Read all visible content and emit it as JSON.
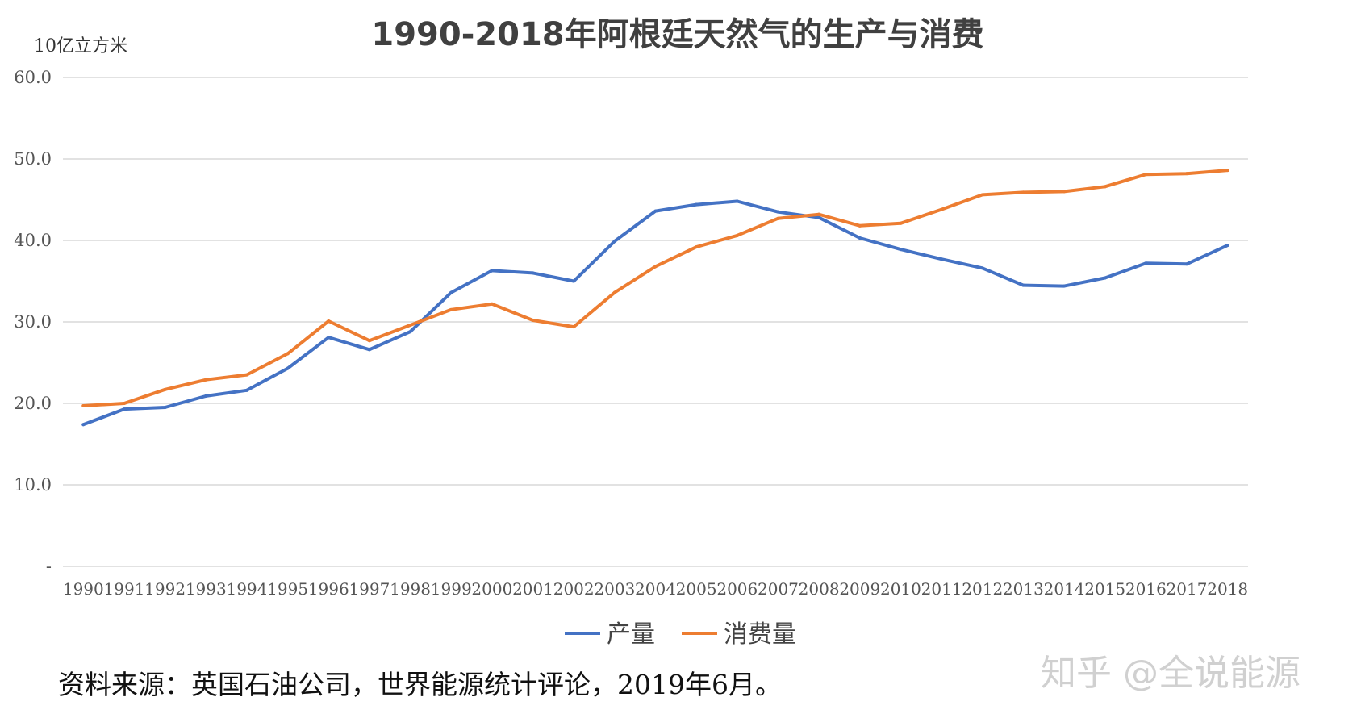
{
  "chart_data": {
    "type": "line",
    "title": "1990-2018年阿根廷天然气的生产与消费",
    "unit_label": "10亿立方米",
    "xlabel": "",
    "ylabel": "",
    "ylim": [
      0,
      60
    ],
    "yticks": [
      0,
      10,
      20,
      30,
      40,
      50,
      60
    ],
    "ytick_labels": [
      "-",
      "10.0",
      "20.0",
      "30.0",
      "40.0",
      "50.0",
      "60.0"
    ],
    "grid": true,
    "legend_position": "bottom",
    "categories": [
      "1990",
      "1991",
      "1992",
      "1993",
      "1994",
      "1995",
      "1996",
      "1997",
      "1998",
      "1999",
      "2000",
      "2001",
      "2002",
      "2003",
      "2004",
      "2005",
      "2006",
      "2007",
      "2008",
      "2009",
      "2010",
      "2011",
      "2012",
      "2013",
      "2014",
      "2015",
      "2016",
      "2017",
      "2018"
    ],
    "series": [
      {
        "name": "产量",
        "color": "#4472C4",
        "values": [
          17.4,
          19.3,
          19.5,
          20.9,
          21.6,
          24.3,
          28.1,
          26.6,
          28.8,
          33.6,
          36.3,
          36.0,
          35.0,
          39.9,
          43.6,
          44.4,
          44.8,
          43.5,
          42.8,
          40.3,
          38.9,
          37.7,
          36.6,
          34.5,
          34.4,
          35.4,
          37.2,
          37.1,
          39.4
        ]
      },
      {
        "name": "消费量",
        "color": "#ED7D31",
        "values": [
          19.7,
          20.0,
          21.7,
          22.9,
          23.5,
          26.1,
          30.1,
          27.7,
          29.6,
          31.5,
          32.2,
          30.2,
          29.4,
          33.6,
          36.8,
          39.2,
          40.6,
          42.7,
          43.2,
          41.8,
          42.1,
          43.8,
          45.6,
          45.9,
          46.0,
          46.6,
          48.1,
          48.2,
          48.6
        ]
      }
    ]
  },
  "footer": {
    "source": "资料来源：英国石油公司，世界能源统计评论，2019年6月。"
  },
  "watermark": {
    "text": "知乎 @全说能源"
  }
}
